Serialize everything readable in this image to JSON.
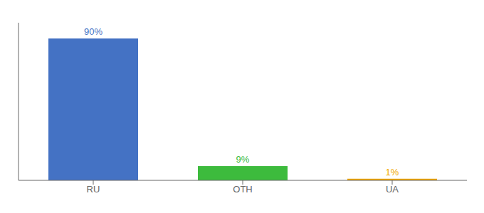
{
  "chart_data": {
    "type": "bar",
    "categories": [
      "RU",
      "OTH",
      "UA"
    ],
    "values": [
      90,
      9,
      1
    ],
    "value_labels": [
      "90%",
      "9%",
      "1%"
    ],
    "colors": [
      "#4472c4",
      "#3dbb3d",
      "#f0a500"
    ],
    "ylim": [
      0,
      100
    ],
    "data_labels": true,
    "tick_labels": "x"
  }
}
